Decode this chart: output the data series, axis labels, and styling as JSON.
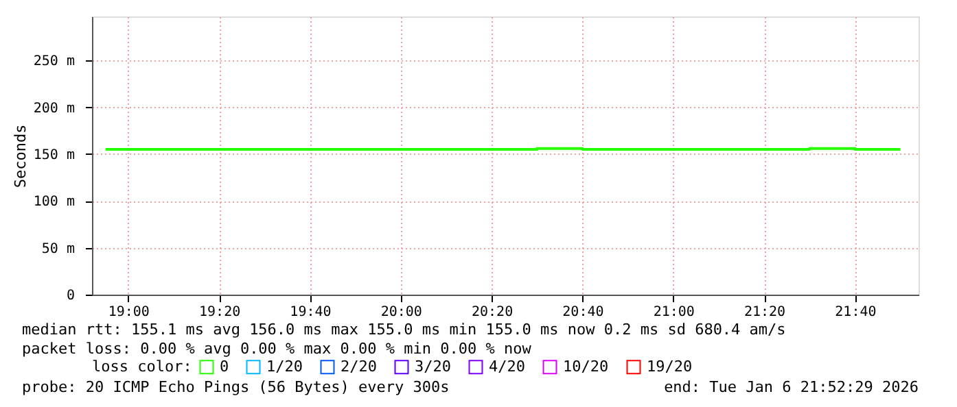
{
  "chart_data": {
    "type": "step",
    "ylabel": "Seconds",
    "legend_title": "loss color:",
    "legend": "bottom",
    "grid": true,
    "x": [
      18.9167,
      19.0,
      19.0833,
      19.1667,
      19.25,
      19.3333,
      19.4167,
      19.5,
      19.5833,
      19.6667,
      19.75,
      19.8333,
      19.9167,
      20.0,
      20.0833,
      20.1667,
      20.25,
      20.3333,
      20.4167,
      20.5,
      20.5833,
      20.6667,
      20.75,
      20.8333,
      20.9167,
      21.0,
      21.0833,
      21.1667,
      21.25,
      21.3333,
      21.4167,
      21.5,
      21.5833,
      21.6667,
      21.75,
      21.8333
    ],
    "xlim": [
      18.867,
      21.9
    ],
    "xticks": [
      {
        "value": 19.0,
        "label": "19:00"
      },
      {
        "value": 19.3333,
        "label": "19:20"
      },
      {
        "value": 19.6667,
        "label": "19:40"
      },
      {
        "value": 20.0,
        "label": "20:00"
      },
      {
        "value": 20.3333,
        "label": "20:20"
      },
      {
        "value": 20.6667,
        "label": "20:40"
      },
      {
        "value": 21.0,
        "label": "21:00"
      },
      {
        "value": 21.3333,
        "label": "21:20"
      },
      {
        "value": 21.6667,
        "label": "21:40"
      }
    ],
    "ylim": [
      0,
      297
    ],
    "yticks": [
      0,
      {
        "value": 50,
        "label": "50 m"
      },
      {
        "value": 100,
        "label": "100 m"
      },
      {
        "value": 150,
        "label": "150 m"
      },
      {
        "value": 200,
        "label": "200 m"
      },
      {
        "value": 250,
        "label": "250 m"
      }
    ],
    "series": [
      {
        "name": "0",
        "color": "#26ff00",
        "values": [
          155,
          155,
          155,
          155,
          155,
          155,
          155,
          155,
          155,
          155,
          155,
          155,
          155,
          155,
          155,
          155,
          155,
          155,
          155,
          156,
          156,
          155,
          155,
          155,
          155,
          155,
          155,
          155,
          155,
          155,
          155,
          156,
          156,
          155,
          155,
          155
        ]
      },
      {
        "name": "1/20",
        "color": "#00b8ff",
        "values": [
          null,
          null,
          null,
          null,
          null,
          null,
          null,
          null,
          null,
          null,
          null,
          null,
          null,
          null,
          null,
          null,
          null,
          null,
          null,
          null,
          null,
          null,
          null,
          null,
          null,
          null,
          null,
          null,
          null,
          null,
          null,
          null,
          null,
          null,
          null,
          null
        ]
      },
      {
        "name": "2/20",
        "color": "#0059ff",
        "values": [
          null,
          null,
          null,
          null,
          null,
          null,
          null,
          null,
          null,
          null,
          null,
          null,
          null,
          null,
          null,
          null,
          null,
          null,
          null,
          null,
          null,
          null,
          null,
          null,
          null,
          null,
          null,
          null,
          null,
          null,
          null,
          null,
          null,
          null,
          null,
          null
        ]
      },
      {
        "name": "3/20",
        "color": "#5e00ff",
        "values": [
          null,
          null,
          null,
          null,
          null,
          null,
          null,
          null,
          null,
          null,
          null,
          null,
          null,
          null,
          null,
          null,
          null,
          null,
          null,
          null,
          null,
          null,
          null,
          null,
          null,
          null,
          null,
          null,
          null,
          null,
          null,
          null,
          null,
          null,
          null,
          null
        ]
      },
      {
        "name": "4/20",
        "color": "#7e00ff",
        "values": [
          null,
          null,
          null,
          null,
          null,
          null,
          null,
          null,
          null,
          null,
          null,
          null,
          null,
          null,
          null,
          null,
          null,
          null,
          null,
          null,
          null,
          null,
          null,
          null,
          null,
          null,
          null,
          null,
          null,
          null,
          null,
          null,
          null,
          null,
          null,
          null
        ]
      },
      {
        "name": "10/20",
        "color": "#dd00ff",
        "values": [
          null,
          null,
          null,
          null,
          null,
          null,
          null,
          null,
          null,
          null,
          null,
          null,
          null,
          null,
          null,
          null,
          null,
          null,
          null,
          null,
          null,
          null,
          null,
          null,
          null,
          null,
          null,
          null,
          null,
          null,
          null,
          null,
          null,
          null,
          null,
          null
        ]
      },
      {
        "name": "19/20",
        "color": "#ff0000",
        "values": [
          null,
          null,
          null,
          null,
          null,
          null,
          null,
          null,
          null,
          null,
          null,
          null,
          null,
          null,
          null,
          null,
          null,
          null,
          null,
          null,
          null,
          null,
          null,
          null,
          null,
          null,
          null,
          null,
          null,
          null,
          null,
          null,
          null,
          null,
          null,
          null
        ]
      }
    ],
    "annotations": [
      "median rtt:  155.1 ms avg  156.0 ms max  155.0 ms min  155.0 ms now  0.2 ms sd  680.4   am/s",
      "packet loss: 0.00 % avg  0.00 % max  0.00 % min  0.00 % now",
      "probe:       20 ICMP Echo Pings (56 Bytes) every 300s",
      "end: Tue Jan  6 21:52:29 2026"
    ]
  }
}
